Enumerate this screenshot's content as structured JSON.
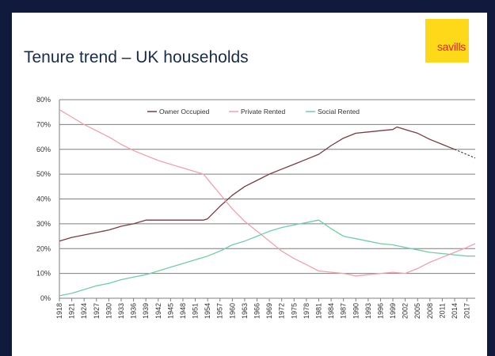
{
  "slide": {
    "title": "Tenure trend – UK households",
    "logo_text": "savills"
  },
  "colors": {
    "background": "#0f1a3c",
    "logo_bg": "#fdd91a",
    "logo_text": "#e3262e",
    "owner": "#7a3b46",
    "private": "#f2a2ae",
    "social": "#6fcfa6"
  },
  "chart_data": {
    "type": "line",
    "title": "",
    "xlabel": "",
    "ylabel": "",
    "ylim": [
      0,
      80
    ],
    "yticks": [
      "0%",
      "10%",
      "20%",
      "30%",
      "40%",
      "50%",
      "60%",
      "70%",
      "80%"
    ],
    "grid": true,
    "legend_position": "top",
    "x_ticks": [
      "1918",
      "1921",
      "1924",
      "1927",
      "1930",
      "1933",
      "1936",
      "1939",
      "1942",
      "1945",
      "1948",
      "1951",
      "1954",
      "1957",
      "1960",
      "1963",
      "1966",
      "1969",
      "1972",
      "1975",
      "1978",
      "1981",
      "1984",
      "1987",
      "1990",
      "1993",
      "1996",
      "1999",
      "2002",
      "2005",
      "2008",
      "2011",
      "2014",
      "2017"
    ],
    "x_min": 1918,
    "x_max": 2019,
    "series": [
      {
        "name": "Owner Occupied",
        "color": "#7a3b46",
        "x": [
          1918,
          1921,
          1924,
          1927,
          1930,
          1933,
          1936,
          1939,
          1942,
          1945,
          1948,
          1951,
          1953,
          1954,
          1957,
          1960,
          1963,
          1966,
          1969,
          1972,
          1975,
          1978,
          1981,
          1984,
          1987,
          1990,
          1993,
          1996,
          1999,
          2000,
          2002,
          2005,
          2008,
          2011,
          2014
        ],
        "values": [
          23,
          24.5,
          25.5,
          26.5,
          27.5,
          29,
          30,
          31.5,
          31.5,
          31.5,
          31.5,
          31.5,
          31.5,
          32,
          37,
          41.5,
          45,
          47.5,
          50,
          52,
          54,
          56,
          58,
          61.5,
          64.5,
          66.5,
          67,
          67.5,
          68,
          69,
          68,
          66.5,
          64,
          62,
          60
        ],
        "projection": {
          "x": [
            2014,
            2019
          ],
          "values": [
            60,
            56.5
          ]
        }
      },
      {
        "name": "Private Rented",
        "color": "#f2a2ae",
        "x": [
          1918,
          1921,
          1924,
          1927,
          1930,
          1933,
          1936,
          1939,
          1942,
          1945,
          1948,
          1951,
          1953,
          1954,
          1957,
          1960,
          1963,
          1966,
          1969,
          1972,
          1975,
          1978,
          1981,
          1984,
          1987,
          1990,
          1993,
          1996,
          1999,
          2002,
          2005,
          2008,
          2011,
          2014,
          2017,
          2019
        ],
        "values": [
          76,
          73,
          70,
          67.5,
          65,
          62,
          59.5,
          57.5,
          55.5,
          54,
          52.5,
          51,
          50,
          48,
          42,
          36,
          31,
          27,
          23,
          19,
          16,
          13.5,
          11,
          10.5,
          10,
          9,
          9.5,
          10,
          10.5,
          10,
          12,
          14.5,
          16.5,
          18.5,
          20.5,
          22
        ]
      },
      {
        "name": "Social Rented",
        "color": "#6fcfa6",
        "x": [
          1918,
          1921,
          1924,
          1927,
          1930,
          1933,
          1936,
          1939,
          1942,
          1945,
          1948,
          1951,
          1954,
          1957,
          1960,
          1963,
          1966,
          1969,
          1972,
          1975,
          1978,
          1981,
          1984,
          1987,
          1990,
          1993,
          1996,
          1999,
          2002,
          2005,
          2008,
          2011,
          2014,
          2017,
          2019
        ],
        "values": [
          1,
          2,
          3.5,
          5,
          6,
          7.5,
          8.5,
          9.5,
          11,
          12.5,
          14,
          15.5,
          17,
          19,
          21.5,
          23,
          25,
          27,
          28.5,
          29.5,
          30.5,
          31.5,
          28,
          25,
          24,
          23,
          22,
          21.5,
          20.5,
          19.5,
          18.5,
          18,
          17.5,
          17,
          17
        ]
      }
    ]
  }
}
